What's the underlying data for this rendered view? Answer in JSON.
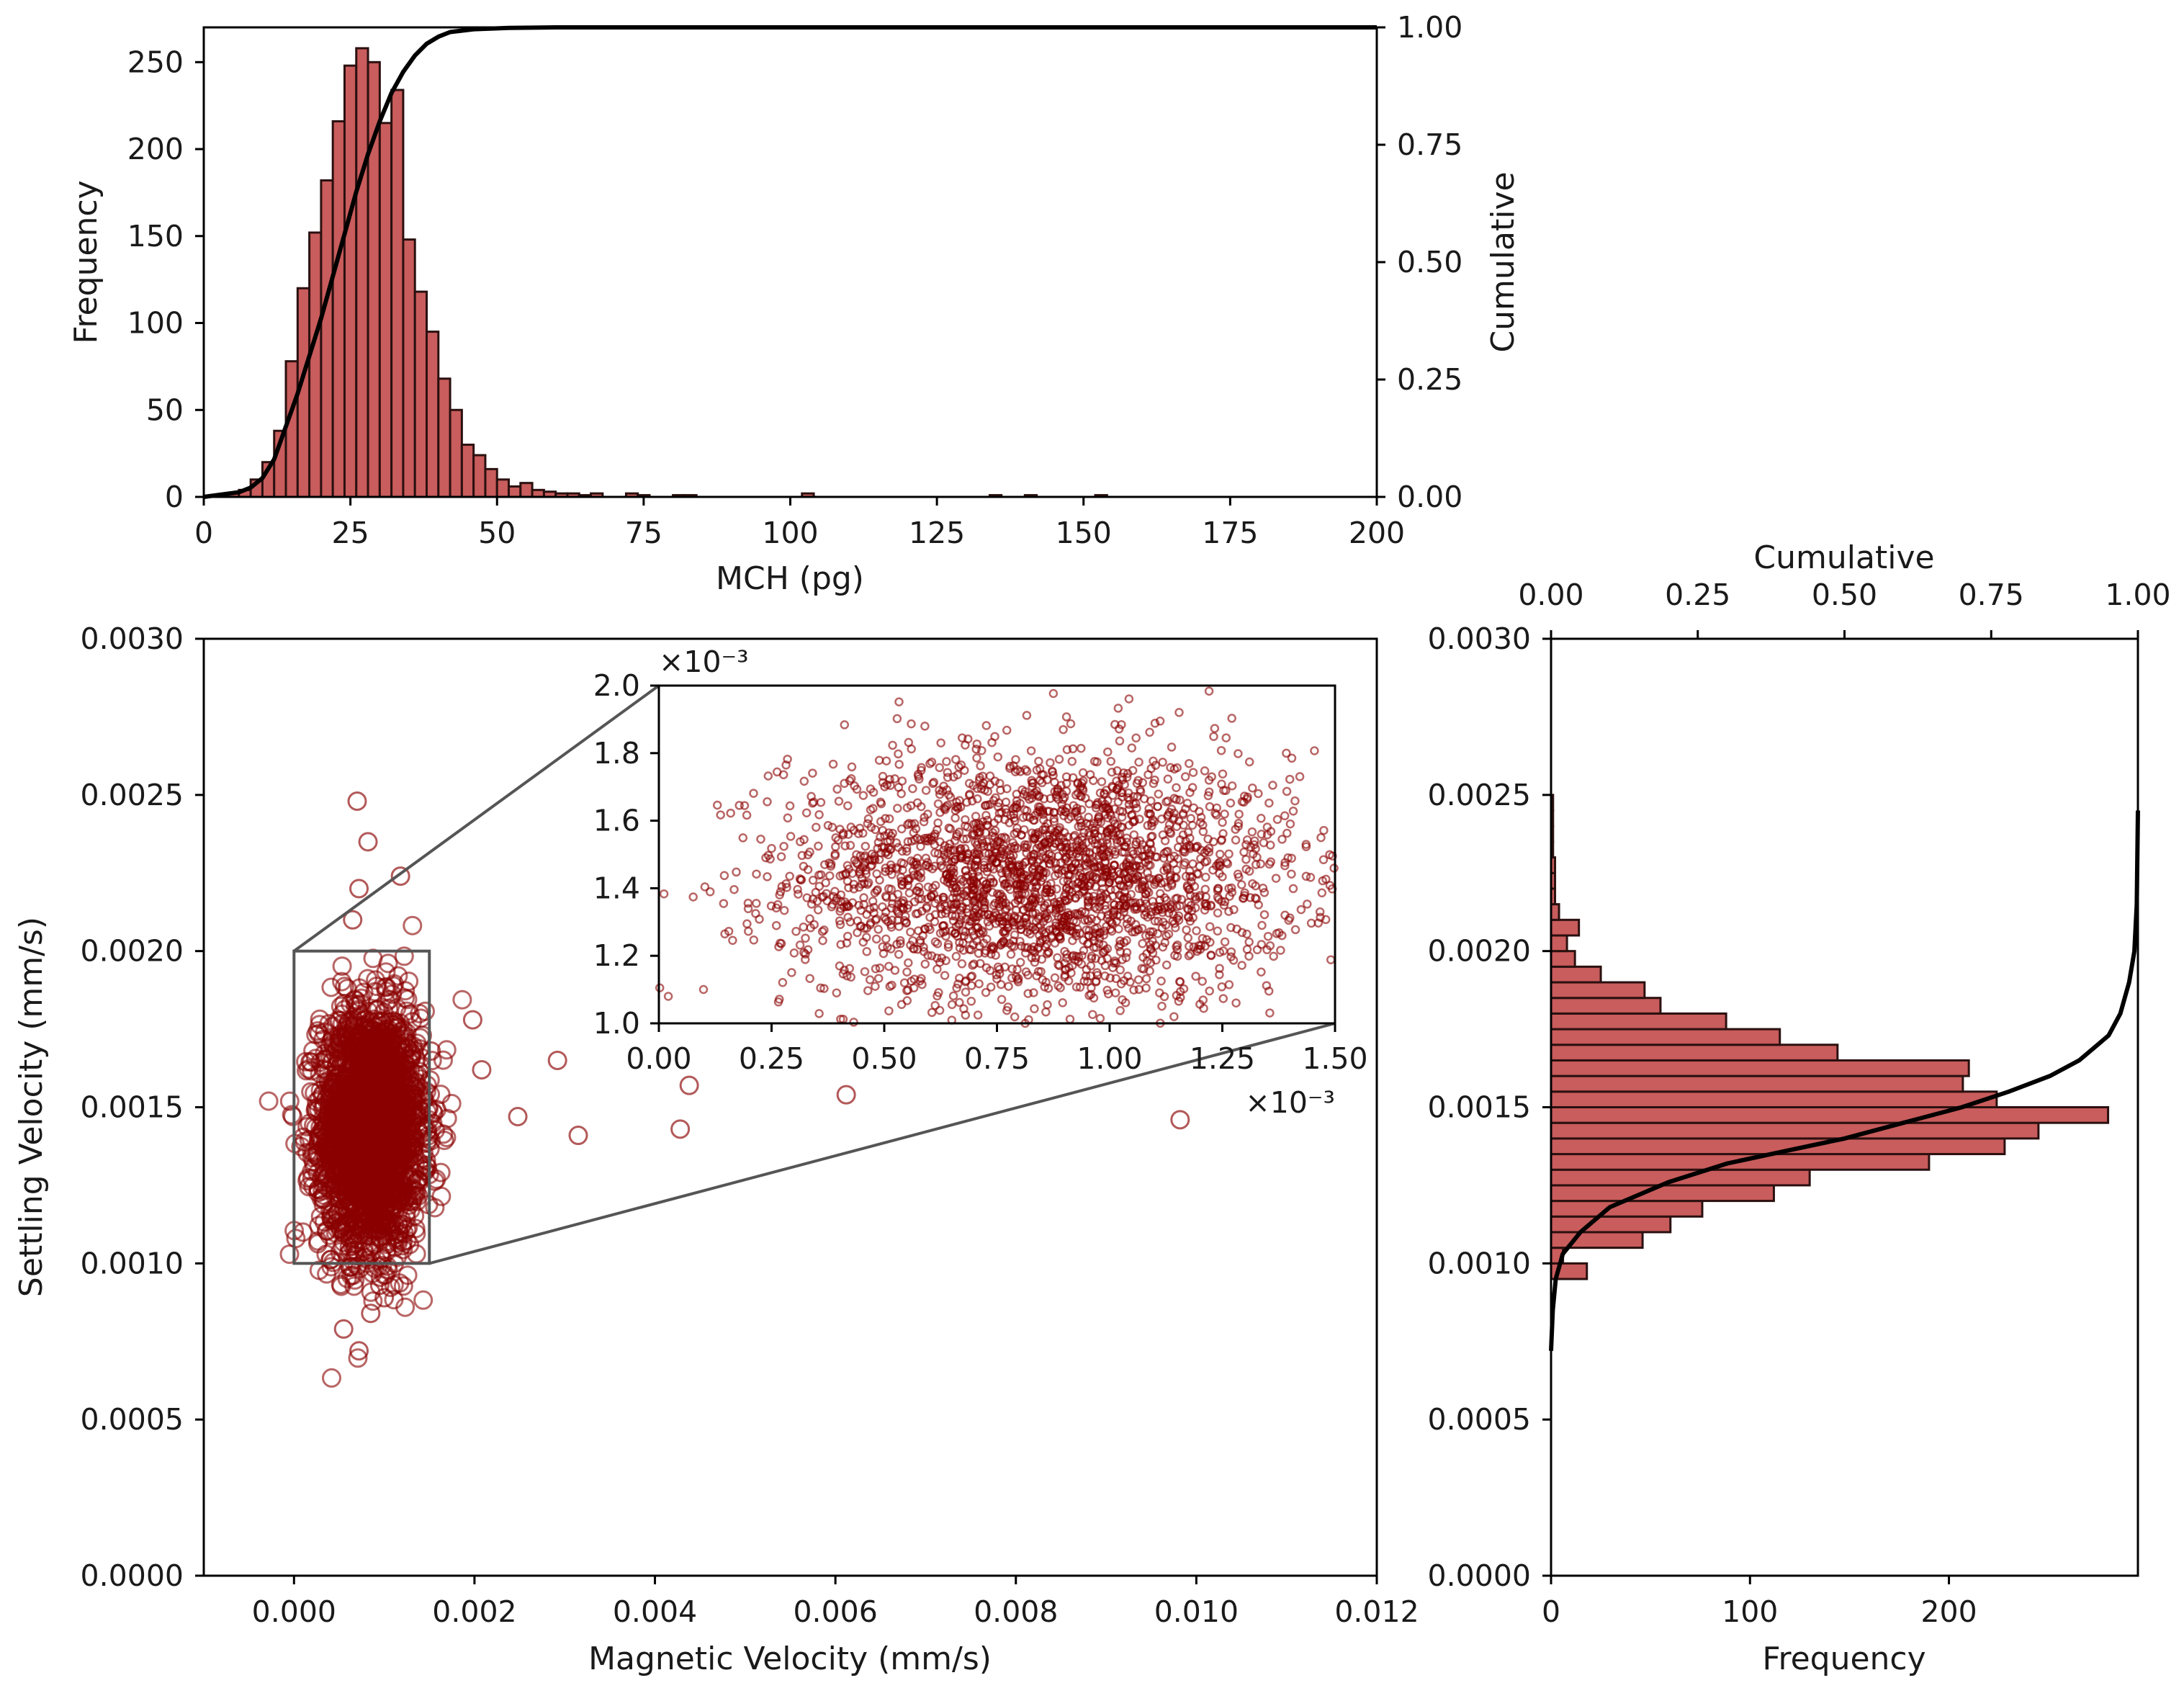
{
  "colors": {
    "bar_fill": "#c95c5c",
    "bar_edge": "#2b1010",
    "point": "#8b0000",
    "cumulative_line": "#000000",
    "zoom_box": "#555555"
  },
  "chart_data": [
    {
      "id": "top_histogram",
      "type": "bar",
      "xlabel": "MCH (pg)",
      "ylabel": "Frequency",
      "y2label": "Cumulative",
      "xlim": [
        0,
        200
      ],
      "ylim": [
        0,
        270
      ],
      "y2lim": [
        0,
        1
      ],
      "xticks": [
        "0",
        "25",
        "50",
        "75",
        "100",
        "125",
        "150",
        "175",
        "200"
      ],
      "yticks": [
        "0",
        "50",
        "100",
        "150",
        "200",
        "250"
      ],
      "y2ticks": [
        "0.00",
        "0.25",
        "0.50",
        "0.75",
        "1.00"
      ],
      "bin_width": 2,
      "bins": [
        [
          4,
          2
        ],
        [
          6,
          4
        ],
        [
          8,
          10
        ],
        [
          10,
          20
        ],
        [
          12,
          38
        ],
        [
          14,
          78
        ],
        [
          16,
          120
        ],
        [
          18,
          152
        ],
        [
          20,
          182
        ],
        [
          22,
          216
        ],
        [
          24,
          248
        ],
        [
          26,
          258
        ],
        [
          28,
          250
        ],
        [
          30,
          215
        ],
        [
          32,
          234
        ],
        [
          34,
          148
        ],
        [
          36,
          118
        ],
        [
          38,
          95
        ],
        [
          40,
          68
        ],
        [
          42,
          50
        ],
        [
          44,
          30
        ],
        [
          46,
          24
        ],
        [
          48,
          16
        ],
        [
          50,
          10
        ],
        [
          52,
          6
        ],
        [
          54,
          8
        ],
        [
          56,
          4
        ],
        [
          58,
          3
        ],
        [
          60,
          2
        ],
        [
          62,
          2
        ],
        [
          64,
          1
        ],
        [
          66,
          2
        ],
        [
          72,
          2
        ],
        [
          74,
          1
        ],
        [
          80,
          1
        ],
        [
          82,
          1
        ],
        [
          102,
          2
        ],
        [
          134,
          1
        ],
        [
          140,
          1
        ],
        [
          152,
          1
        ]
      ],
      "cumulative": [
        [
          0,
          0
        ],
        [
          6,
          0.01
        ],
        [
          8,
          0.02
        ],
        [
          10,
          0.04
        ],
        [
          12,
          0.08
        ],
        [
          14,
          0.15
        ],
        [
          16,
          0.22
        ],
        [
          18,
          0.3
        ],
        [
          20,
          0.38
        ],
        [
          22,
          0.47
        ],
        [
          24,
          0.56
        ],
        [
          26,
          0.65
        ],
        [
          28,
          0.73
        ],
        [
          30,
          0.8
        ],
        [
          32,
          0.86
        ],
        [
          34,
          0.905
        ],
        [
          36,
          0.94
        ],
        [
          38,
          0.965
        ],
        [
          40,
          0.98
        ],
        [
          42,
          0.99
        ],
        [
          46,
          0.996
        ],
        [
          52,
          0.999
        ],
        [
          60,
          1
        ],
        [
          200,
          1
        ]
      ]
    },
    {
      "id": "main_scatter",
      "type": "scatter",
      "xlabel": "Magnetic Velocity (mm/s)",
      "ylabel": "Settling Velocity (mm/s)",
      "xlim": [
        -0.001,
        0.012
      ],
      "ylim": [
        0,
        0.003
      ],
      "xticks": [
        "0.000",
        "0.002",
        "0.004",
        "0.006",
        "0.008",
        "0.010",
        "0.012"
      ],
      "yticks": [
        "0.0000",
        "0.0005",
        "0.0010",
        "0.0015",
        "0.0020",
        "0.0025",
        "0.0030"
      ],
      "cluster": {
        "mean_x": 0.00085,
        "sd_x": 0.00028,
        "mean_y": 0.00143,
        "sd_y": 0.00019,
        "n": 2600
      },
      "highlighted_points": [
        [
          0.0007,
          0.00248
        ],
        [
          0.00082,
          0.00235
        ],
        [
          0.00072,
          0.0022
        ],
        [
          0.00118,
          0.00224
        ],
        [
          0.00065,
          0.0021
        ],
        [
          0.00055,
          0.00079
        ],
        [
          0.00072,
          0.00072
        ],
        [
          0.00085,
          0.00084
        ],
        [
          0.001,
          0.00089
        ],
        [
          0.00095,
          0.00093
        ],
        [
          0.00152,
          0.00168
        ],
        [
          0.00198,
          0.00178
        ],
        [
          0.00208,
          0.00162
        ],
        [
          0.00248,
          0.00147
        ],
        [
          0.00292,
          0.00165
        ],
        [
          0.00315,
          0.00141
        ],
        [
          0.00428,
          0.00143
        ],
        [
          0.00438,
          0.00157
        ],
        [
          0.00612,
          0.00154
        ],
        [
          0.00982,
          0.00146
        ]
      ],
      "zoom_region": {
        "x": [
          0,
          0.0015
        ],
        "y": [
          0.001,
          0.002
        ]
      }
    },
    {
      "id": "inset_zoom",
      "type": "scatter",
      "xlim": [
        0,
        1.5
      ],
      "ylim": [
        1.0,
        2.0
      ],
      "x_multiplier": "×10⁻³",
      "y_multiplier": "×10⁻³",
      "xticks": [
        "0.00",
        "0.25",
        "0.50",
        "0.75",
        "1.00",
        "1.25",
        "1.50"
      ],
      "yticks": [
        "1.0",
        "1.2",
        "1.4",
        "1.6",
        "1.8",
        "2.0"
      ]
    },
    {
      "id": "right_histogram",
      "type": "bar",
      "orientation": "horizontal",
      "xlabel": "Frequency",
      "x2label": "Cumulative",
      "xlim": [
        0,
        295
      ],
      "ylim": [
        0,
        0.003
      ],
      "xticks": [
        "0",
        "100",
        "200"
      ],
      "x2ticks": [
        "0.00",
        "0.25",
        "0.50",
        "0.75",
        "1.00"
      ],
      "bin_height": 5e-05,
      "bins": [
        [
          0.00095,
          18
        ],
        [
          0.001,
          6
        ],
        [
          0.00105,
          46
        ],
        [
          0.0011,
          60
        ],
        [
          0.00115,
          76
        ],
        [
          0.0012,
          112
        ],
        [
          0.00125,
          130
        ],
        [
          0.0013,
          190
        ],
        [
          0.00135,
          228
        ],
        [
          0.0014,
          245
        ],
        [
          0.00145,
          280
        ],
        [
          0.0015,
          224
        ],
        [
          0.00155,
          207
        ],
        [
          0.0016,
          210
        ],
        [
          0.00165,
          144
        ],
        [
          0.0017,
          115
        ],
        [
          0.00175,
          88
        ],
        [
          0.0018,
          55
        ],
        [
          0.00185,
          47
        ],
        [
          0.0019,
          25
        ],
        [
          0.00195,
          12
        ],
        [
          0.002,
          8
        ],
        [
          0.00205,
          14
        ],
        [
          0.0021,
          4
        ],
        [
          0.00215,
          2
        ],
        [
          0.0022,
          2
        ],
        [
          0.00225,
          2
        ],
        [
          0.0023,
          1
        ],
        [
          0.00235,
          1
        ],
        [
          0.0024,
          1
        ],
        [
          0.00245,
          1
        ]
      ],
      "cumulative": [
        [
          0,
          0.00072
        ],
        [
          0.003,
          0.00085
        ],
        [
          0.008,
          0.00095
        ],
        [
          0.02,
          0.00103
        ],
        [
          0.05,
          0.0011
        ],
        [
          0.1,
          0.00118
        ],
        [
          0.2,
          0.00126
        ],
        [
          0.3,
          0.00132
        ],
        [
          0.4,
          0.00136
        ],
        [
          0.5,
          0.0014
        ],
        [
          0.6,
          0.00145
        ],
        [
          0.7,
          0.0015
        ],
        [
          0.78,
          0.00155
        ],
        [
          0.85,
          0.0016
        ],
        [
          0.9,
          0.00165
        ],
        [
          0.95,
          0.00173
        ],
        [
          0.97,
          0.0018
        ],
        [
          0.985,
          0.0019
        ],
        [
          0.994,
          0.002
        ],
        [
          0.998,
          0.00215
        ],
        [
          1,
          0.00245
        ]
      ]
    }
  ]
}
